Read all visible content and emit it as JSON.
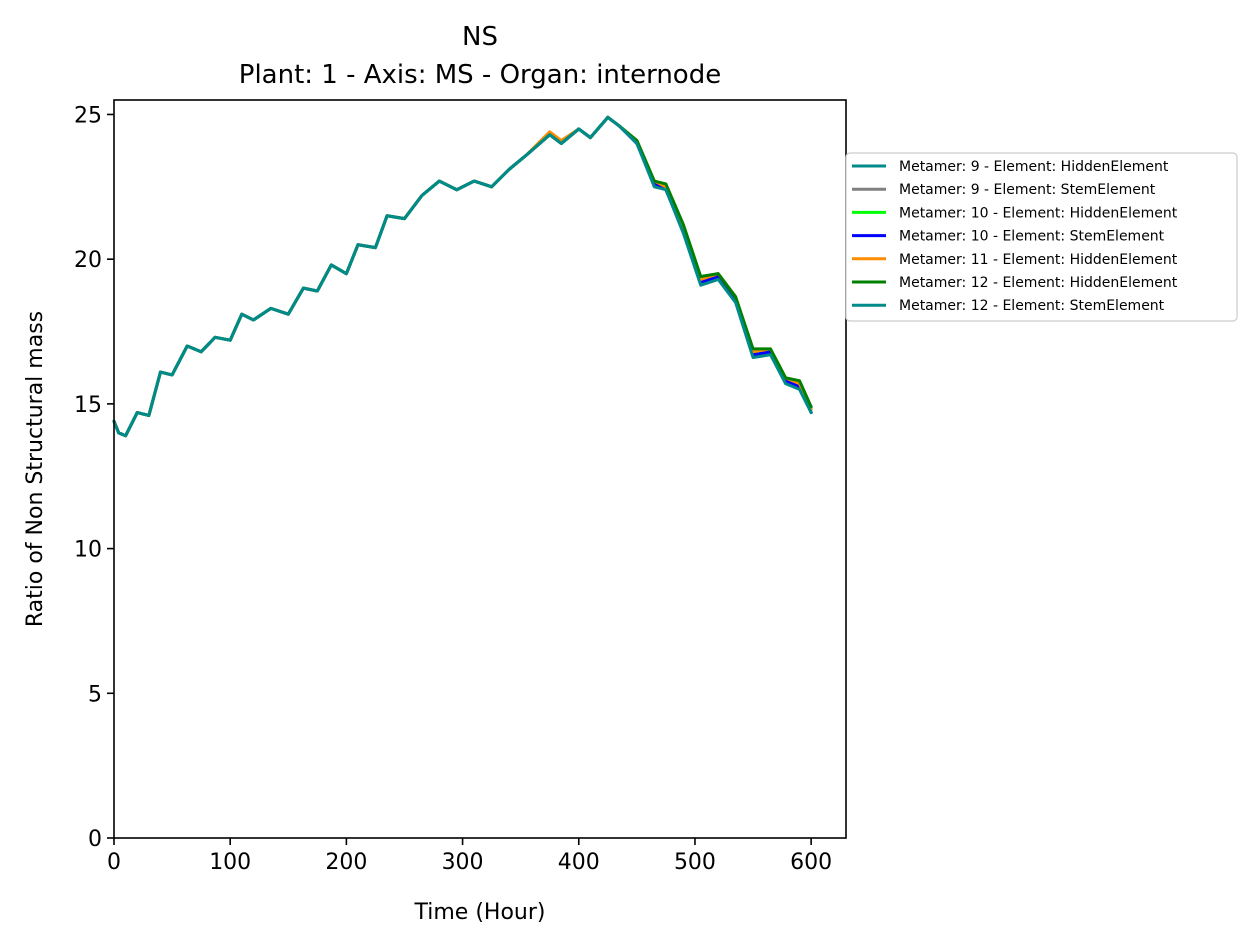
{
  "chart_data": {
    "type": "line",
    "title": "NS",
    "subtitle": "Plant: 1 - Axis: MS - Organ: internode",
    "xlabel": "Time (Hour)",
    "ylabel": "Ratio of Non Structural mass",
    "xlim": [
      0,
      630
    ],
    "ylim": [
      0,
      25.5
    ],
    "xticks": [
      0,
      100,
      200,
      300,
      400,
      500,
      600
    ],
    "yticks": [
      0,
      5,
      10,
      15,
      20,
      25
    ],
    "grid": false,
    "legend_position": "right, outside plot",
    "x": [
      0,
      4,
      10,
      20,
      30,
      40,
      50,
      63,
      75,
      87,
      100,
      110,
      120,
      135,
      150,
      163,
      175,
      187,
      200,
      210,
      225,
      235,
      250,
      265,
      280,
      295,
      310,
      325,
      340,
      355,
      375,
      385,
      400,
      410,
      425,
      435,
      450,
      465,
      475,
      490,
      505,
      520,
      535,
      550,
      565,
      578,
      590,
      600
    ],
    "series": [
      {
        "name": "Metamer: 9 - Element: HiddenElement",
        "color": "#008b8b",
        "values": [
          14.4,
          14.0,
          13.9,
          14.7,
          14.6,
          16.1,
          16.0,
          17.0,
          16.8,
          17.3,
          17.2,
          18.1,
          17.9,
          18.3,
          18.1,
          19.0,
          18.9,
          19.8,
          19.5,
          20.5,
          20.4,
          21.5,
          21.4,
          22.2,
          22.7,
          22.4,
          22.7,
          22.5,
          23.1,
          23.6,
          24.3,
          24.0,
          24.5,
          24.2,
          24.9,
          24.6,
          24.0,
          22.6,
          22.4,
          21.0,
          19.2,
          19.4,
          18.6,
          16.7,
          16.8,
          15.8,
          15.6,
          14.7
        ]
      },
      {
        "name": "Metamer: 9 - Element: StemElement",
        "color": "#808080",
        "values": [
          14.4,
          14.0,
          13.9,
          14.7,
          14.6,
          16.1,
          16.0,
          17.0,
          16.8,
          17.3,
          17.2,
          18.1,
          17.9,
          18.3,
          18.1,
          19.0,
          18.9,
          19.8,
          19.5,
          20.5,
          20.4,
          21.5,
          21.4,
          22.2,
          22.7,
          22.4,
          22.7,
          22.5,
          23.1,
          23.6,
          24.3,
          24.0,
          24.5,
          24.2,
          24.9,
          24.6,
          24.0,
          22.6,
          22.4,
          21.0,
          19.2,
          19.4,
          18.6,
          16.7,
          16.8,
          15.8,
          15.6,
          14.7
        ]
      },
      {
        "name": "Metamer: 10 - Element: HiddenElement",
        "color": "#00ff00",
        "values": [
          14.4,
          14.0,
          13.9,
          14.7,
          14.6,
          16.1,
          16.0,
          17.0,
          16.8,
          17.3,
          17.2,
          18.1,
          17.9,
          18.3,
          18.1,
          19.0,
          18.9,
          19.8,
          19.5,
          20.5,
          20.4,
          21.5,
          21.4,
          22.2,
          22.7,
          22.4,
          22.7,
          22.5,
          23.1,
          23.6,
          24.3,
          24.0,
          24.5,
          24.2,
          24.9,
          24.6,
          24.1,
          22.7,
          22.5,
          21.1,
          19.3,
          19.5,
          18.7,
          16.8,
          16.9,
          15.9,
          15.7,
          14.8
        ]
      },
      {
        "name": "Metamer: 10 - Element: StemElement",
        "color": "#0000ff",
        "values": [
          14.4,
          14.0,
          13.9,
          14.7,
          14.6,
          16.1,
          16.0,
          17.0,
          16.8,
          17.3,
          17.2,
          18.1,
          17.9,
          18.3,
          18.1,
          19.0,
          18.9,
          19.8,
          19.5,
          20.5,
          20.4,
          21.5,
          21.4,
          22.2,
          22.7,
          22.4,
          22.7,
          22.5,
          23.1,
          23.6,
          24.3,
          24.0,
          24.5,
          24.2,
          24.9,
          24.6,
          24.0,
          22.6,
          22.4,
          21.0,
          19.2,
          19.4,
          18.6,
          16.7,
          16.8,
          15.8,
          15.6,
          14.7
        ]
      },
      {
        "name": "Metamer: 11 - Element: HiddenElement",
        "color": "#ff8c00",
        "values": [
          14.4,
          14.0,
          13.9,
          14.7,
          14.6,
          16.1,
          16.0,
          17.0,
          16.8,
          17.3,
          17.2,
          18.1,
          17.9,
          18.3,
          18.1,
          19.0,
          18.9,
          19.8,
          19.5,
          20.5,
          20.4,
          21.5,
          21.4,
          22.2,
          22.7,
          22.4,
          22.7,
          22.5,
          23.1,
          23.6,
          24.4,
          24.1,
          24.5,
          24.2,
          24.9,
          24.6,
          24.1,
          22.7,
          22.5,
          21.1,
          19.3,
          19.5,
          18.7,
          16.8,
          16.9,
          15.9,
          15.7,
          14.8
        ]
      },
      {
        "name": "Metamer: 12 - Element: HiddenElement",
        "color": "#008000",
        "values": [
          14.4,
          14.0,
          13.9,
          14.7,
          14.6,
          16.1,
          16.0,
          17.0,
          16.8,
          17.3,
          17.2,
          18.1,
          17.9,
          18.3,
          18.1,
          19.0,
          18.9,
          19.8,
          19.5,
          20.5,
          20.4,
          21.5,
          21.4,
          22.2,
          22.7,
          22.4,
          22.7,
          22.5,
          23.1,
          23.6,
          24.3,
          24.0,
          24.5,
          24.2,
          24.9,
          24.6,
          24.1,
          22.7,
          22.6,
          21.2,
          19.4,
          19.5,
          18.7,
          16.9,
          16.9,
          15.9,
          15.8,
          14.9
        ]
      },
      {
        "name": "Metamer: 12 - Element: StemElement",
        "color": "#008b8b",
        "values": [
          14.4,
          14.0,
          13.9,
          14.7,
          14.6,
          16.1,
          16.0,
          17.0,
          16.8,
          17.3,
          17.2,
          18.1,
          17.9,
          18.3,
          18.1,
          19.0,
          18.9,
          19.8,
          19.5,
          20.5,
          20.4,
          21.5,
          21.4,
          22.2,
          22.7,
          22.4,
          22.7,
          22.5,
          23.1,
          23.6,
          24.3,
          24.0,
          24.5,
          24.2,
          24.9,
          24.6,
          24.0,
          22.5,
          22.4,
          20.9,
          19.1,
          19.3,
          18.5,
          16.6,
          16.7,
          15.7,
          15.5,
          14.7
        ]
      }
    ]
  }
}
